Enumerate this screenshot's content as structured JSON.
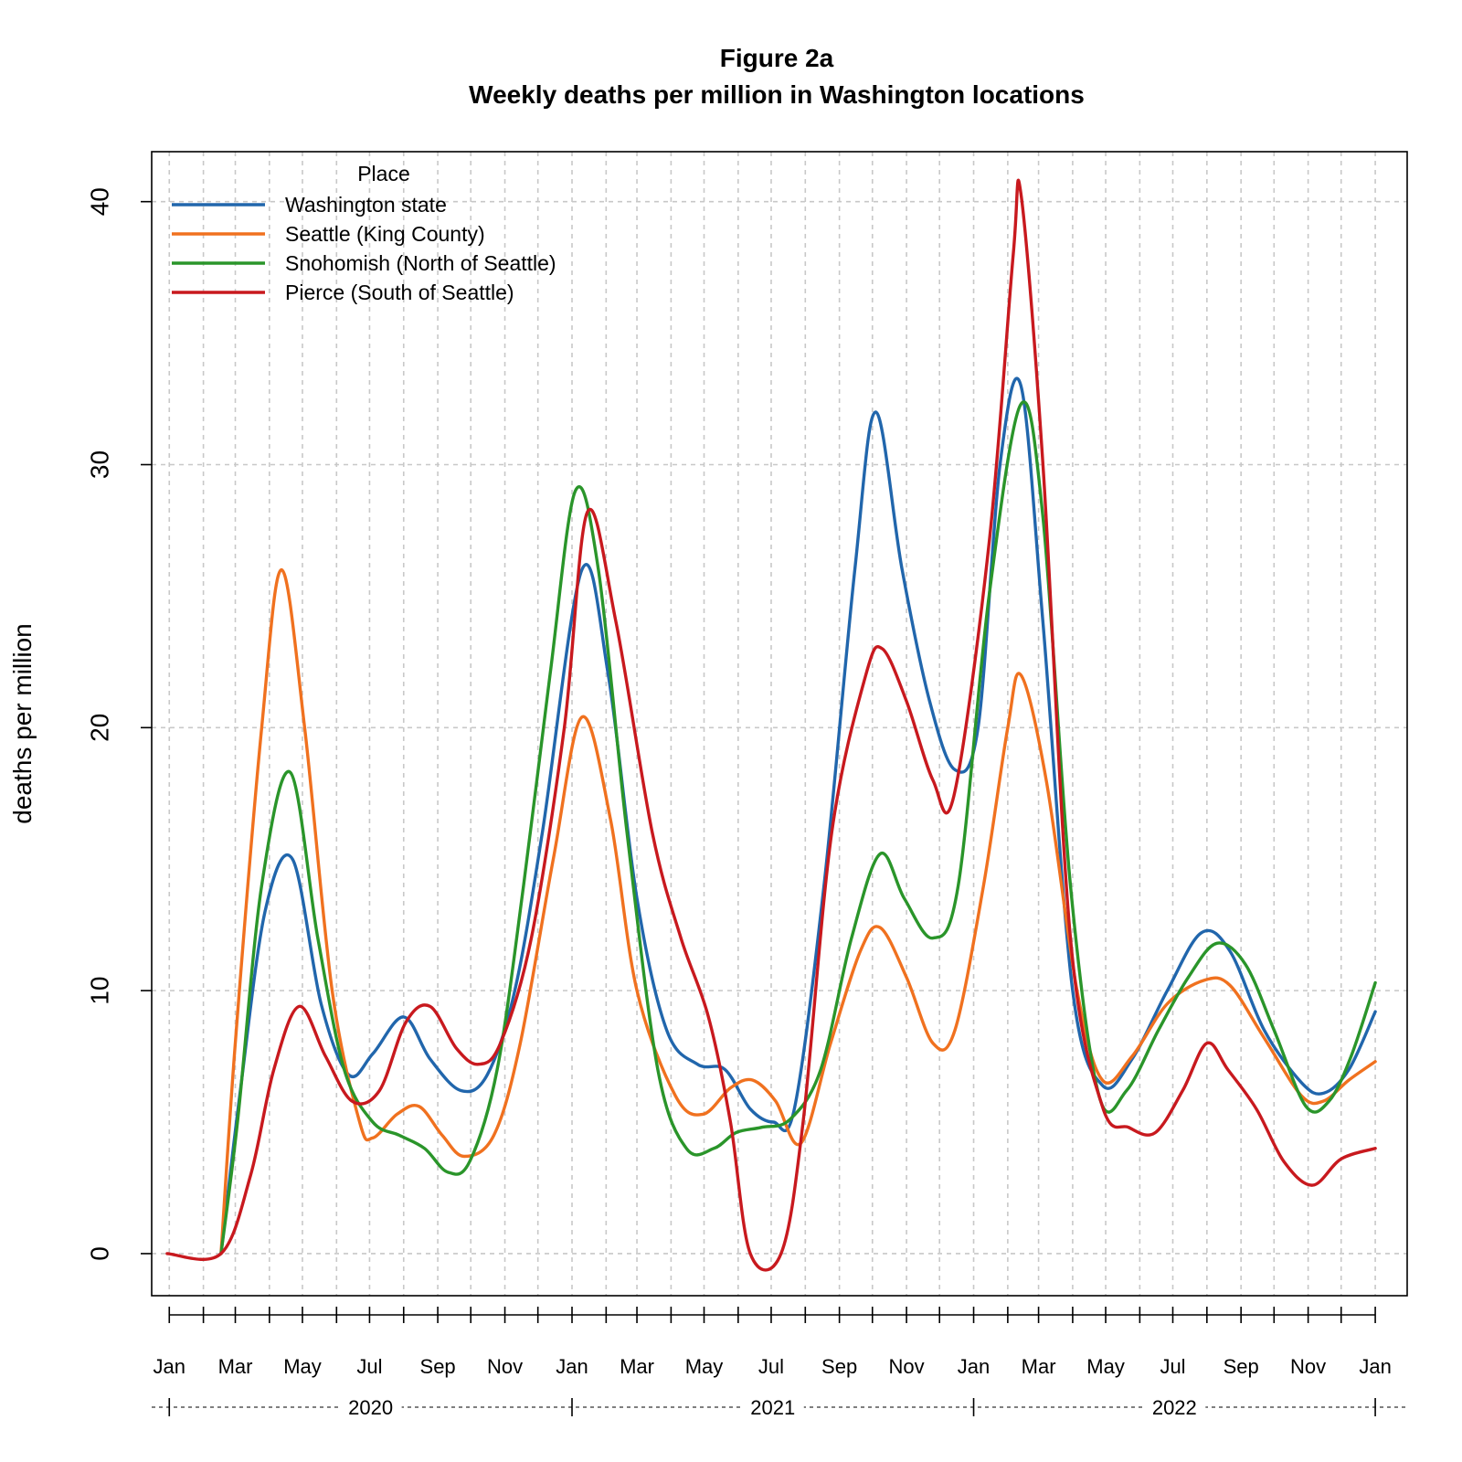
{
  "chart_data": {
    "type": "line",
    "title": "Figure 2a",
    "subtitle": "Weekly deaths per million in Washington locations",
    "xlabel": "",
    "ylabel": "deaths per million",
    "ylim": [
      -1.6,
      41.9
    ],
    "xlim": [
      "2019-12-16",
      "2023-01-30"
    ],
    "yticks": [
      0,
      10,
      20,
      30,
      40
    ],
    "grid": true,
    "legend": {
      "title": "Place",
      "placement": "top-left"
    },
    "x_month_ticks": [
      "2020-01-01",
      "2020-03-01",
      "2020-05-01",
      "2020-07-01",
      "2020-09-01",
      "2020-11-01",
      "2021-01-01",
      "2021-03-01",
      "2021-05-01",
      "2021-07-01",
      "2021-09-01",
      "2021-11-01",
      "2022-01-01",
      "2022-03-01",
      "2022-05-01",
      "2022-07-01",
      "2022-09-01",
      "2022-11-01",
      "2023-01-01"
    ],
    "x_month_labels": [
      "Jan",
      "Mar",
      "May",
      "Jul",
      "Sep",
      "Nov",
      "Jan",
      "Mar",
      "May",
      "Jul",
      "Sep",
      "Nov",
      "Jan",
      "Mar",
      "May",
      "Jul",
      "Sep",
      "Nov",
      "Jan"
    ],
    "years": [
      {
        "label": "2020",
        "start": "2020-01-01",
        "end": "2021-01-01"
      },
      {
        "label": "2021",
        "start": "2021-01-01",
        "end": "2022-01-01"
      },
      {
        "label": "2022",
        "start": "2022-01-01",
        "end": "2023-01-01"
      }
    ],
    "series": [
      {
        "name": "Washington state",
        "color": "#2166ac",
        "points": [
          [
            "2020-02-17",
            0
          ],
          [
            "2020-03-05",
            6
          ],
          [
            "2020-03-28",
            13
          ],
          [
            "2020-04-22",
            15
          ],
          [
            "2020-05-18",
            9.5
          ],
          [
            "2020-06-12",
            6.8
          ],
          [
            "2020-07-04",
            7.6
          ],
          [
            "2020-08-01",
            9
          ],
          [
            "2020-08-25",
            7.4
          ],
          [
            "2020-09-22",
            6.2
          ],
          [
            "2020-10-16",
            6.8
          ],
          [
            "2020-11-10",
            10
          ],
          [
            "2020-12-05",
            16
          ],
          [
            "2021-01-10",
            26
          ],
          [
            "2021-02-03",
            22
          ],
          [
            "2021-03-01",
            13.5
          ],
          [
            "2021-03-28",
            8.5
          ],
          [
            "2021-04-25",
            7.2
          ],
          [
            "2021-05-20",
            7
          ],
          [
            "2021-06-12",
            5.5
          ],
          [
            "2021-07-03",
            5
          ],
          [
            "2021-07-22",
            5.5
          ],
          [
            "2021-08-18",
            14
          ],
          [
            "2021-09-15",
            26
          ],
          [
            "2021-10-04",
            32
          ],
          [
            "2021-10-28",
            26
          ],
          [
            "2021-11-22",
            21
          ],
          [
            "2021-12-15",
            18.4
          ],
          [
            "2022-01-05",
            20
          ],
          [
            "2022-01-25",
            30
          ],
          [
            "2022-02-13",
            33
          ],
          [
            "2022-03-05",
            24
          ],
          [
            "2022-04-01",
            10
          ],
          [
            "2022-04-28",
            6.4
          ],
          [
            "2022-05-25",
            7.4
          ],
          [
            "2022-06-26",
            10
          ],
          [
            "2022-07-27",
            12.2
          ],
          [
            "2022-08-22",
            11.5
          ],
          [
            "2022-09-22",
            8.5
          ],
          [
            "2022-10-26",
            6.5
          ],
          [
            "2022-11-15",
            6.1
          ],
          [
            "2022-12-08",
            7
          ],
          [
            "2023-01-01",
            9.2
          ]
        ]
      },
      {
        "name": "Seattle (King County)",
        "color": "#f0711f",
        "points": [
          [
            "2020-02-17",
            0
          ],
          [
            "2020-03-01",
            8
          ],
          [
            "2020-03-25",
            20
          ],
          [
            "2020-04-12",
            26
          ],
          [
            "2020-05-03",
            20
          ],
          [
            "2020-05-28",
            10
          ],
          [
            "2020-06-22",
            5
          ],
          [
            "2020-07-04",
            4.4
          ],
          [
            "2020-07-26",
            5.3
          ],
          [
            "2020-08-15",
            5.6
          ],
          [
            "2020-09-05",
            4.5
          ],
          [
            "2020-09-25",
            3.7
          ],
          [
            "2020-10-22",
            4.5
          ],
          [
            "2020-11-15",
            8
          ],
          [
            "2020-12-15",
            15
          ],
          [
            "2021-01-10",
            20.4
          ],
          [
            "2021-02-05",
            16.5
          ],
          [
            "2021-03-01",
            10
          ],
          [
            "2021-04-05",
            6
          ],
          [
            "2021-04-30",
            5.3
          ],
          [
            "2021-05-25",
            6.3
          ],
          [
            "2021-06-14",
            6.6
          ],
          [
            "2021-07-05",
            5.8
          ],
          [
            "2021-07-28",
            4.2
          ],
          [
            "2021-08-24",
            8
          ],
          [
            "2021-09-20",
            11.5
          ],
          [
            "2021-10-08",
            12.4
          ],
          [
            "2021-11-01",
            10.5
          ],
          [
            "2021-11-25",
            8
          ],
          [
            "2021-12-15",
            8.5
          ],
          [
            "2022-01-10",
            14
          ],
          [
            "2022-02-01",
            20
          ],
          [
            "2022-02-13",
            22
          ],
          [
            "2022-03-08",
            18
          ],
          [
            "2022-04-05",
            10
          ],
          [
            "2022-04-28",
            6.6
          ],
          [
            "2022-05-25",
            7.5
          ],
          [
            "2022-06-26",
            9.5
          ],
          [
            "2022-07-30",
            10.4
          ],
          [
            "2022-08-22",
            10.2
          ],
          [
            "2022-09-22",
            8.2
          ],
          [
            "2022-10-26",
            6
          ],
          [
            "2022-11-15",
            5.8
          ],
          [
            "2022-12-08",
            6.6
          ],
          [
            "2023-01-01",
            7.3
          ]
        ]
      },
      {
        "name": "Snohomish (North of Seattle)",
        "color": "#2a952a",
        "points": [
          [
            "2020-02-17",
            0
          ],
          [
            "2020-03-03",
            5
          ],
          [
            "2020-03-25",
            14
          ],
          [
            "2020-04-20",
            18.3
          ],
          [
            "2020-05-15",
            12
          ],
          [
            "2020-06-08",
            7
          ],
          [
            "2020-07-04",
            5
          ],
          [
            "2020-07-28",
            4.5
          ],
          [
            "2020-08-20",
            4
          ],
          [
            "2020-09-10",
            3.1
          ],
          [
            "2020-09-30",
            3.5
          ],
          [
            "2020-10-25",
            7
          ],
          [
            "2020-11-18",
            14
          ],
          [
            "2020-12-12",
            22
          ],
          [
            "2021-01-04",
            29
          ],
          [
            "2021-01-25",
            26
          ],
          [
            "2021-02-20",
            16
          ],
          [
            "2021-03-20",
            7
          ],
          [
            "2021-04-15",
            4
          ],
          [
            "2021-05-10",
            4
          ],
          [
            "2021-05-30",
            4.6
          ],
          [
            "2021-06-22",
            4.8
          ],
          [
            "2021-07-18",
            5.1
          ],
          [
            "2021-08-15",
            7
          ],
          [
            "2021-09-12",
            12
          ],
          [
            "2021-10-08",
            15.2
          ],
          [
            "2021-10-30",
            13.5
          ],
          [
            "2021-11-25",
            12
          ],
          [
            "2021-12-18",
            14
          ],
          [
            "2022-01-15",
            25
          ],
          [
            "2022-02-13",
            32.3
          ],
          [
            "2022-03-05",
            28
          ],
          [
            "2022-03-30",
            14
          ],
          [
            "2022-04-25",
            6
          ],
          [
            "2022-05-20",
            6.2
          ],
          [
            "2022-06-18",
            8.5
          ],
          [
            "2022-07-15",
            10.5
          ],
          [
            "2022-08-10",
            11.8
          ],
          [
            "2022-09-05",
            11
          ],
          [
            "2022-10-01",
            8.5
          ],
          [
            "2022-10-30",
            5.6
          ],
          [
            "2022-11-20",
            5.8
          ],
          [
            "2022-12-10",
            7.5
          ],
          [
            "2023-01-01",
            10.3
          ]
        ]
      },
      {
        "name": "Pierce (South of Seattle)",
        "color": "#c8191e",
        "points": [
          [
            "2019-12-30",
            0
          ],
          [
            "2020-02-17",
            0
          ],
          [
            "2020-03-15",
            3
          ],
          [
            "2020-04-05",
            7
          ],
          [
            "2020-04-28",
            9.4
          ],
          [
            "2020-05-22",
            7.5
          ],
          [
            "2020-06-15",
            5.8
          ],
          [
            "2020-07-10",
            6.2
          ],
          [
            "2020-08-03",
            8.8
          ],
          [
            "2020-08-25",
            9.4
          ],
          [
            "2020-09-18",
            7.8
          ],
          [
            "2020-10-08",
            7.2
          ],
          [
            "2020-10-28",
            8
          ],
          [
            "2020-11-25",
            12
          ],
          [
            "2020-12-25",
            20
          ],
          [
            "2021-01-15",
            28.2
          ],
          [
            "2021-02-10",
            24
          ],
          [
            "2021-03-15",
            16
          ],
          [
            "2021-04-10",
            12
          ],
          [
            "2021-05-05",
            9
          ],
          [
            "2021-05-25",
            5
          ],
          [
            "2021-06-12",
            0
          ],
          [
            "2021-07-10",
            0
          ],
          [
            "2021-07-30",
            5
          ],
          [
            "2021-08-25",
            16
          ],
          [
            "2021-09-25",
            22
          ],
          [
            "2021-10-10",
            23
          ],
          [
            "2021-11-01",
            21
          ],
          [
            "2021-11-25",
            18
          ],
          [
            "2021-12-14",
            17.4
          ],
          [
            "2022-01-15",
            27
          ],
          [
            "2022-02-06",
            38
          ],
          [
            "2022-02-13",
            40.3
          ],
          [
            "2022-03-05",
            30
          ],
          [
            "2022-03-30",
            12
          ],
          [
            "2022-04-28",
            5.6
          ],
          [
            "2022-05-22",
            4.8
          ],
          [
            "2022-06-15",
            4.6
          ],
          [
            "2022-07-10",
            6.2
          ],
          [
            "2022-08-01",
            8
          ],
          [
            "2022-08-20",
            7
          ],
          [
            "2022-09-15",
            5.5
          ],
          [
            "2022-10-10",
            3.5
          ],
          [
            "2022-11-05",
            2.6
          ],
          [
            "2022-12-01",
            3.6
          ],
          [
            "2023-01-01",
            4
          ]
        ]
      }
    ]
  }
}
